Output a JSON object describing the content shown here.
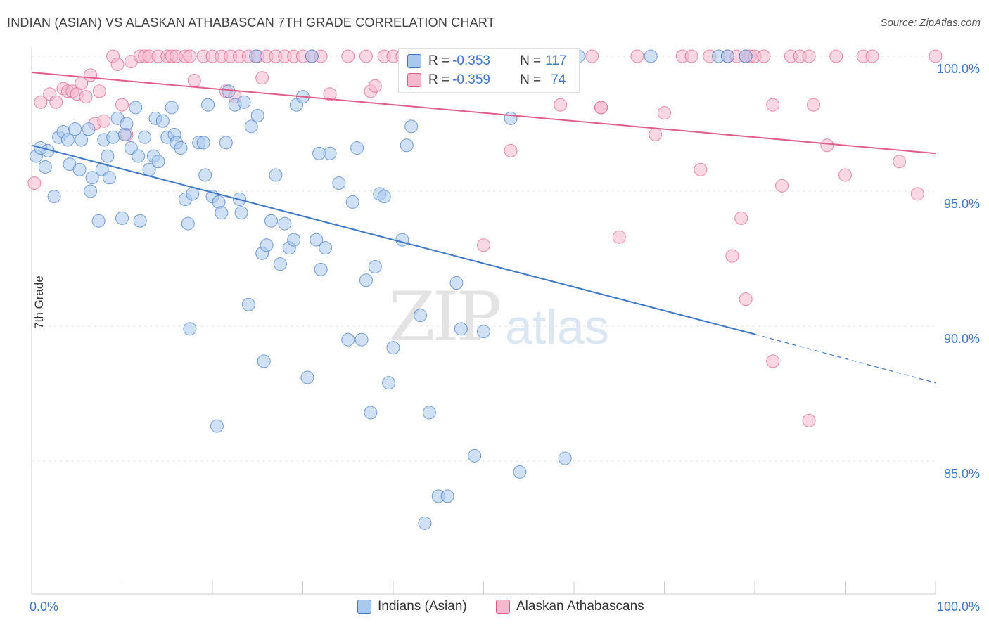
{
  "title": "INDIAN (ASIAN) VS ALASKAN ATHABASCAN 7TH GRADE CORRELATION CHART",
  "source": "Source: ZipAtlas.com",
  "watermark": {
    "zip": "ZIP",
    "atlas": "atlas"
  },
  "colors": {
    "blue": "#3d78c8",
    "blue_fill": "#a9c8ee",
    "pink": "#e05d8a",
    "pink_fill": "#f5b8cc"
  },
  "legend_stats": [
    {
      "r_label": "R = ",
      "r": "-0.353",
      "n_label": "N = ",
      "n": "117"
    },
    {
      "r_label": "R = ",
      "r": "-0.359",
      "n_label": "N = ",
      "n": "74"
    }
  ],
  "chart_data": {
    "type": "scatter",
    "xlabel": "",
    "ylabel": "7th Grade",
    "xlim": [
      0,
      100
    ],
    "ylim": [
      80.5,
      100.6
    ],
    "x_tick_labels": [
      "0.0%",
      "100.0%"
    ],
    "y_ticks": [
      {
        "value": 100,
        "label": "100.0%"
      },
      {
        "value": 95,
        "label": "95.0%"
      },
      {
        "value": 90,
        "label": "90.0%"
      },
      {
        "value": 85,
        "label": "85.0%"
      }
    ],
    "grid": true,
    "legend": "bottom",
    "series": [
      {
        "name": "Indians (Asian)",
        "color": "#3d78c8",
        "trend": {
          "x0": 0,
          "y0": 96.7,
          "x1": 80,
          "y1": 89.7,
          "dash_to_x": 100,
          "dash_to_y": 87.9
        },
        "points": [
          [
            0.5,
            96.3
          ],
          [
            1,
            96.6
          ],
          [
            1.5,
            95.9
          ],
          [
            1.8,
            96.5
          ],
          [
            2.5,
            94.8
          ],
          [
            3,
            97
          ],
          [
            3.5,
            97.2
          ],
          [
            4,
            96.9
          ],
          [
            4.2,
            96
          ],
          [
            4.8,
            97.3
          ],
          [
            5.5,
            96.9
          ],
          [
            5.3,
            95.8
          ],
          [
            6.3,
            97.3
          ],
          [
            6.5,
            95
          ],
          [
            6.7,
            95.5
          ],
          [
            7.4,
            93.9
          ],
          [
            7.8,
            95.8
          ],
          [
            8,
            96.9
          ],
          [
            8.4,
            96.3
          ],
          [
            8.6,
            95.5
          ],
          [
            9,
            97
          ],
          [
            9.5,
            97.7
          ],
          [
            10,
            94
          ],
          [
            10.3,
            97.1
          ],
          [
            10.5,
            97.5
          ],
          [
            11,
            96.6
          ],
          [
            11.5,
            98.1
          ],
          [
            11.8,
            96.3
          ],
          [
            12,
            93.9
          ],
          [
            12.5,
            97
          ],
          [
            13,
            95.8
          ],
          [
            13.5,
            96.3
          ],
          [
            13.7,
            97.7
          ],
          [
            14,
            96.1
          ],
          [
            14.5,
            97.6
          ],
          [
            15,
            97
          ],
          [
            15.5,
            98.1
          ],
          [
            15.8,
            97.1
          ],
          [
            16,
            96.8
          ],
          [
            16.5,
            96.6
          ],
          [
            17,
            94.7
          ],
          [
            17.3,
            93.8
          ],
          [
            17.5,
            89.9
          ],
          [
            17.8,
            94.9
          ],
          [
            18.5,
            96.8
          ],
          [
            19,
            96.8
          ],
          [
            19.2,
            95.6
          ],
          [
            19.5,
            98.2
          ],
          [
            20,
            94.8
          ],
          [
            20.5,
            86.3
          ],
          [
            20.7,
            94.6
          ],
          [
            21,
            94.2
          ],
          [
            21.5,
            96.8
          ],
          [
            21.8,
            98.7
          ],
          [
            22.5,
            98.2
          ],
          [
            23,
            94.7
          ],
          [
            23.2,
            94.2
          ],
          [
            23.5,
            98.3
          ],
          [
            24,
            90.8
          ],
          [
            24.3,
            97.4
          ],
          [
            24.8,
            100
          ],
          [
            25,
            97.8
          ],
          [
            25.5,
            92.7
          ],
          [
            25.7,
            88.7
          ],
          [
            26,
            93
          ],
          [
            26.5,
            93.9
          ],
          [
            27,
            95.6
          ],
          [
            27.5,
            92.3
          ],
          [
            28,
            93.8
          ],
          [
            28.5,
            92.9
          ],
          [
            29,
            93.2
          ],
          [
            29.3,
            98.2
          ],
          [
            30,
            98.5
          ],
          [
            30.5,
            88.1
          ],
          [
            31,
            100
          ],
          [
            31.5,
            93.2
          ],
          [
            31.8,
            96.4
          ],
          [
            32,
            92.1
          ],
          [
            32.5,
            92.9
          ],
          [
            33,
            96.4
          ],
          [
            34,
            95.3
          ],
          [
            35,
            89.5
          ],
          [
            35.5,
            94.6
          ],
          [
            36,
            96.6
          ],
          [
            36.5,
            89.5
          ],
          [
            37,
            91.7
          ],
          [
            37.5,
            86.8
          ],
          [
            38,
            92.2
          ],
          [
            38.5,
            94.9
          ],
          [
            39,
            94.8
          ],
          [
            39.5,
            87.9
          ],
          [
            40,
            89.2
          ],
          [
            41,
            93.2
          ],
          [
            41.5,
            96.7
          ],
          [
            42,
            97.4
          ],
          [
            43,
            90.4
          ],
          [
            43.5,
            82.7
          ],
          [
            44,
            86.8
          ],
          [
            45,
            83.7
          ],
          [
            46,
            83.7
          ],
          [
            47,
            91.6
          ],
          [
            47.5,
            89.9
          ],
          [
            48,
            100
          ],
          [
            49,
            85.2
          ],
          [
            50,
            89.8
          ],
          [
            53,
            97.7
          ],
          [
            54,
            84.6
          ],
          [
            59,
            85.1
          ],
          [
            60.5,
            100
          ],
          [
            68.5,
            100
          ],
          [
            76,
            100
          ],
          [
            77,
            100
          ],
          [
            79,
            100
          ]
        ]
      },
      {
        "name": "Alaskan Athabascans",
        "color": "#e05d8a",
        "trend": {
          "x0": 0,
          "y0": 99.4,
          "x1": 100,
          "y1": 96.4
        },
        "points": [
          [
            0.3,
            95.3
          ],
          [
            1,
            98.3
          ],
          [
            2,
            98.6
          ],
          [
            2.7,
            98.3
          ],
          [
            3.5,
            98.8
          ],
          [
            4,
            98.7
          ],
          [
            4.5,
            98.7
          ],
          [
            5,
            98.6
          ],
          [
            5.5,
            99
          ],
          [
            6,
            98.5
          ],
          [
            6.5,
            99.3
          ],
          [
            7,
            97.5
          ],
          [
            7.5,
            98.7
          ],
          [
            8,
            97.6
          ],
          [
            9,
            100
          ],
          [
            9.5,
            99.7
          ],
          [
            10,
            98.2
          ],
          [
            10.5,
            97.1
          ],
          [
            11,
            99.8
          ],
          [
            12,
            100
          ],
          [
            12.5,
            100
          ],
          [
            13,
            100
          ],
          [
            14,
            100
          ],
          [
            15,
            100
          ],
          [
            15.5,
            100
          ],
          [
            16,
            100
          ],
          [
            17,
            100
          ],
          [
            17.5,
            100
          ],
          [
            18,
            99.1
          ],
          [
            19,
            100
          ],
          [
            20,
            100
          ],
          [
            21,
            100
          ],
          [
            21.5,
            98.7
          ],
          [
            22,
            100
          ],
          [
            22.5,
            98.5
          ],
          [
            23,
            100
          ],
          [
            24,
            100
          ],
          [
            25,
            100
          ],
          [
            25.5,
            99.2
          ],
          [
            26,
            100
          ],
          [
            27,
            100
          ],
          [
            28,
            100
          ],
          [
            29,
            100
          ],
          [
            30,
            100
          ],
          [
            31,
            100
          ],
          [
            32,
            100
          ],
          [
            33,
            98.6
          ],
          [
            35,
            100
          ],
          [
            37,
            100
          ],
          [
            37.5,
            98.7
          ],
          [
            38,
            98.9
          ],
          [
            39,
            100
          ],
          [
            40,
            100
          ],
          [
            41,
            100
          ],
          [
            42,
            100
          ],
          [
            45,
            100
          ],
          [
            50,
            93
          ],
          [
            53,
            96.5
          ],
          [
            58,
            100
          ],
          [
            58.5,
            98.2
          ],
          [
            62,
            100
          ],
          [
            63,
            98.1
          ],
          [
            65,
            93.3
          ],
          [
            67,
            100
          ],
          [
            69,
            97.1
          ],
          [
            70,
            97.9
          ],
          [
            72,
            100
          ],
          [
            73,
            100
          ],
          [
            74,
            95.8
          ],
          [
            75,
            100
          ],
          [
            77,
            100
          ],
          [
            78,
            100
          ],
          [
            79,
            100
          ],
          [
            79.5,
            100
          ],
          [
            80,
            100
          ],
          [
            81,
            100
          ],
          [
            82,
            98.2
          ],
          [
            83,
            95.2
          ],
          [
            84,
            100
          ],
          [
            85,
            100
          ],
          [
            86,
            100
          ],
          [
            86.5,
            98.2
          ],
          [
            88,
            96.7
          ],
          [
            89,
            100
          ],
          [
            90,
            95.6
          ],
          [
            92,
            100
          ],
          [
            93,
            100
          ],
          [
            96,
            96.1
          ],
          [
            98,
            94.9
          ],
          [
            100,
            100
          ],
          [
            63,
            98.1
          ],
          [
            77.5,
            92.6
          ],
          [
            78.5,
            94
          ],
          [
            79,
            91
          ],
          [
            82,
            88.7
          ],
          [
            86,
            86.5
          ]
        ]
      }
    ]
  }
}
